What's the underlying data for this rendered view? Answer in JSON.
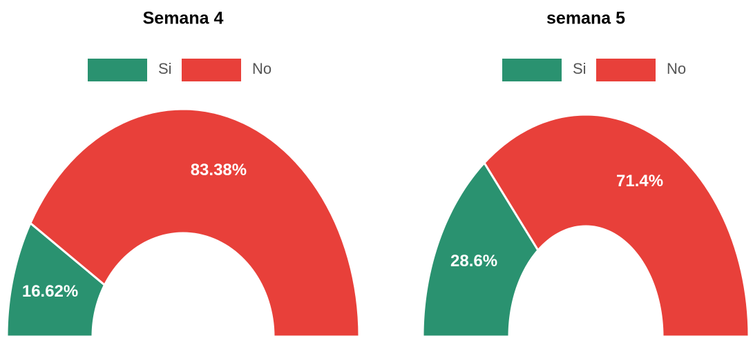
{
  "chart_data": [
    {
      "type": "donut",
      "title": "Semana 4",
      "categories": [
        "Si",
        "No"
      ],
      "values": [
        16.62,
        83.38
      ],
      "value_labels": [
        "16.62%",
        "83.38%"
      ],
      "colors": [
        "#2a9270",
        "#e8403a"
      ],
      "legend": "top"
    },
    {
      "type": "donut",
      "title": "semana 5",
      "categories": [
        "Si",
        "No"
      ],
      "values": [
        28.6,
        71.4
      ],
      "value_labels": [
        "28.6%",
        "71.4%"
      ],
      "colors": [
        "#2a9270",
        "#e8403a"
      ],
      "legend": "top"
    }
  ]
}
